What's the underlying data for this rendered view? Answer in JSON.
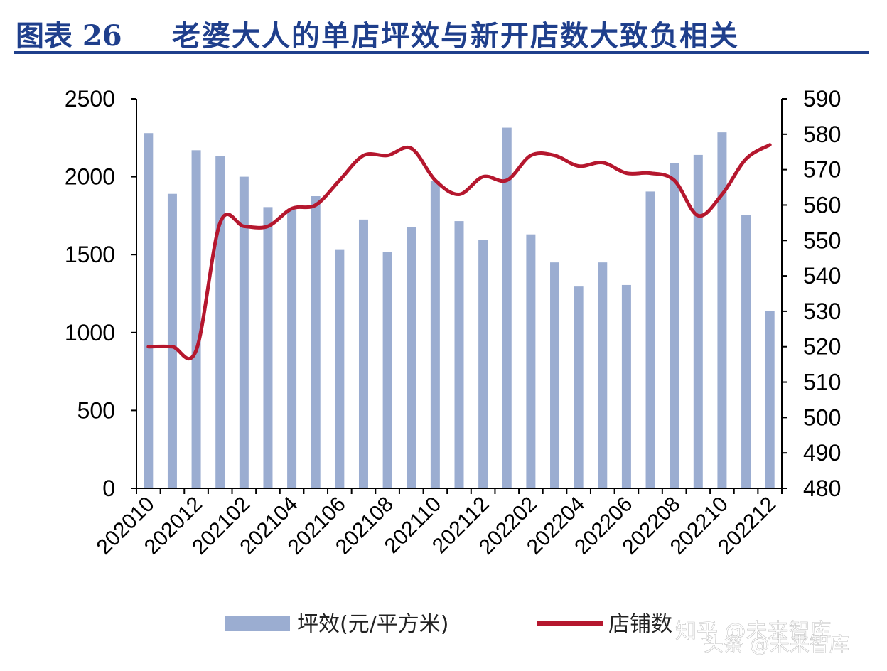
{
  "header": {
    "label": "图表 26",
    "title": "老婆大人的单店坪效与新开店数大致负相关"
  },
  "colors": {
    "title": "#1f3f8c",
    "bar": "#9badd1",
    "line": "#b5172e",
    "axis": "#000000"
  },
  "chart_data": {
    "type": "bar",
    "categories": [
      "202010",
      "202011",
      "202012",
      "202101",
      "202102",
      "202103",
      "202104",
      "202105",
      "202106",
      "202107",
      "202108",
      "202109",
      "202110",
      "202111",
      "202112",
      "202201",
      "202202",
      "202203",
      "202204",
      "202205",
      "202206",
      "202207",
      "202208",
      "202209",
      "202210",
      "202211",
      "202212"
    ],
    "x_tick_labels": [
      "202010",
      "202012",
      "202102",
      "202104",
      "202106",
      "202108",
      "202110",
      "202112",
      "202202",
      "202204",
      "202206",
      "202208",
      "202210",
      "202212"
    ],
    "series": [
      {
        "name": "坪效(元/平方米)",
        "type": "bar",
        "axis": "left",
        "values": [
          2280,
          1890,
          2170,
          2135,
          2000,
          1805,
          1790,
          1875,
          1530,
          1725,
          1515,
          1675,
          1975,
          1715,
          1595,
          2315,
          1630,
          1450,
          1295,
          1450,
          1305,
          1905,
          2085,
          2140,
          2285,
          1755,
          1140
        ]
      },
      {
        "name": "店铺数",
        "type": "line",
        "axis": "right",
        "values": [
          520,
          520,
          519,
          555,
          554,
          554,
          559,
          560,
          567,
          574,
          574,
          576,
          567,
          563,
          568,
          567,
          574,
          574,
          571,
          572,
          569,
          569,
          567,
          557,
          563,
          573,
          577
        ]
      }
    ],
    "y_left": {
      "min": 0,
      "max": 2500,
      "ticks": [
        0,
        500,
        1000,
        1500,
        2000,
        2500
      ]
    },
    "y_right": {
      "min": 480,
      "max": 590,
      "ticks": [
        480,
        490,
        500,
        510,
        520,
        530,
        540,
        550,
        560,
        570,
        580,
        590
      ]
    },
    "grid": false,
    "legend": "bottom"
  },
  "watermark": {
    "line1": "知乎 @未来智库",
    "line2": "头条 @未来智库"
  }
}
